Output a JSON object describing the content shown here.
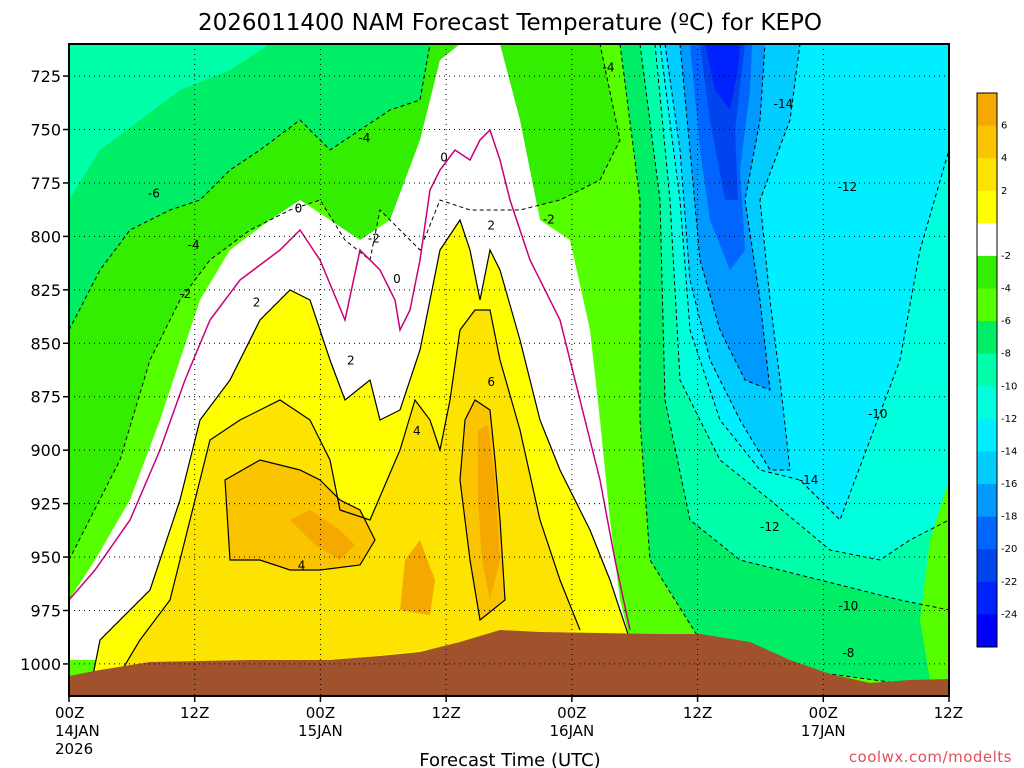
{
  "chart_data": {
    "type": "heatmap",
    "title": "2026011400 NAM Forecast Temperature (ºC) for KEPO",
    "xlabel": "Forecast Time (UTC)",
    "ylabel": "",
    "y_ticks": [
      "725",
      "750",
      "775",
      "800",
      "825",
      "850",
      "875",
      "900",
      "925",
      "950",
      "975",
      "1000"
    ],
    "y_tick_values": [
      725,
      750,
      775,
      800,
      825,
      850,
      875,
      900,
      925,
      950,
      975,
      1000
    ],
    "ylim": [
      1015,
      710
    ],
    "x_ticks": [
      {
        "hour": 0,
        "line1": "00Z",
        "line2": "14JAN",
        "line3": "2026"
      },
      {
        "hour": 12,
        "line1": "12Z",
        "line2": "",
        "line3": ""
      },
      {
        "hour": 24,
        "line1": "00Z",
        "line2": "15JAN",
        "line3": ""
      },
      {
        "hour": 36,
        "line1": "12Z",
        "line2": "",
        "line3": ""
      },
      {
        "hour": 48,
        "line1": "00Z",
        "line2": "16JAN",
        "line3": ""
      },
      {
        "hour": 60,
        "line1": "12Z",
        "line2": "",
        "line3": ""
      },
      {
        "hour": 72,
        "line1": "00Z",
        "line2": "17JAN",
        "line3": ""
      },
      {
        "hour": 84,
        "line1": "12Z",
        "line2": "",
        "line3": ""
      }
    ],
    "xlim": [
      0,
      84
    ],
    "colorbar": {
      "labels": [
        "6",
        "4",
        "2",
        "-2",
        "-4",
        "-6",
        "-8",
        "-10",
        "-12",
        "-14",
        "-16",
        "-18",
        "-20",
        "-22",
        "-24"
      ],
      "colors": [
        "#f5a900",
        "#fbc400",
        "#fde400",
        "#ffff00",
        "#ffffff",
        "#33ee00",
        "#55ff00",
        "#00ee66",
        "#00ffaa",
        "#00ffdd",
        "#00eeff",
        "#00ccff",
        "#0099ff",
        "#0066ff",
        "#0044ee",
        "#0022ff",
        "#0000ff"
      ]
    },
    "contour_labels": [
      {
        "text": "-4",
        "hour": 51.5,
        "p": 721
      },
      {
        "text": "-14",
        "hour": 68.2,
        "p": 738
      },
      {
        "text": "-4",
        "hour": 28.2,
        "p": 754
      },
      {
        "text": "0",
        "hour": 35.8,
        "p": 763
      },
      {
        "text": "-6",
        "hour": 8.1,
        "p": 780
      },
      {
        "text": "-12",
        "hour": 74.3,
        "p": 777
      },
      {
        "text": "0",
        "hour": 21.9,
        "p": 787
      },
      {
        "text": "2",
        "hour": 40.3,
        "p": 795
      },
      {
        "text": "-2",
        "hour": 45.8,
        "p": 792
      },
      {
        "text": "-4",
        "hour": 11.9,
        "p": 804
      },
      {
        "text": "-2",
        "hour": 29.1,
        "p": 801
      },
      {
        "text": "0",
        "hour": 31.3,
        "p": 820
      },
      {
        "text": "-2",
        "hour": 11.1,
        "p": 827
      },
      {
        "text": "2",
        "hour": 17.9,
        "p": 831
      },
      {
        "text": "2",
        "hour": 26.9,
        "p": 858
      },
      {
        "text": "6",
        "hour": 40.3,
        "p": 868
      },
      {
        "text": "4",
        "hour": 33.2,
        "p": 891
      },
      {
        "text": "-10",
        "hour": 77.2,
        "p": 883
      },
      {
        "text": "-14",
        "hour": 70.6,
        "p": 914
      },
      {
        "text": "-12",
        "hour": 66.9,
        "p": 936
      },
      {
        "text": "4",
        "hour": 22.2,
        "p": 954
      },
      {
        "text": "-10",
        "hour": 74.4,
        "p": 973
      },
      {
        "text": "-8",
        "hour": 74.4,
        "p": 995
      }
    ],
    "credit": "coolwx.com/modelts"
  }
}
